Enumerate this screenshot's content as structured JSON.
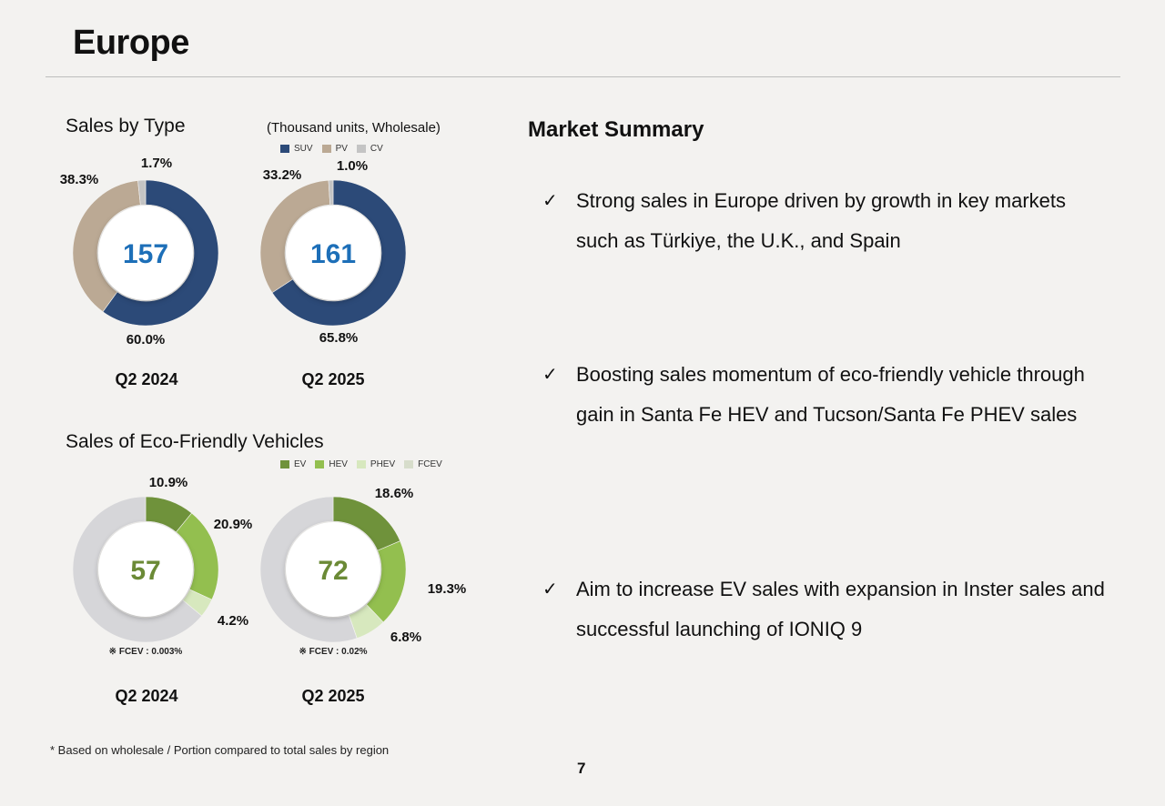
{
  "header": {
    "title": "Europe"
  },
  "sales_by_type": {
    "title": "Sales by Type",
    "unit_note": "(Thousand units, Wholesale)",
    "legend": [
      {
        "label": "SUV",
        "color": "#2c4a78"
      },
      {
        "label": "PV",
        "color": "#bba994"
      },
      {
        "label": "CV",
        "color": "#c4c4c4"
      }
    ]
  },
  "eco_sales": {
    "title": "Sales of Eco-Friendly Vehicles",
    "legend": [
      {
        "label": "EV",
        "color": "#6f923b"
      },
      {
        "label": "HEV",
        "color": "#93bf4f"
      },
      {
        "label": "PHEV",
        "color": "#d7e8be"
      },
      {
        "label": "FCEV",
        "color": "#d7ddcb"
      }
    ]
  },
  "chart_data": [
    {
      "type": "pie",
      "variant": "donut",
      "period": "Q2 2024",
      "total": 157,
      "total_color": "#1d6fb8",
      "slices": [
        {
          "name": "SUV",
          "value": 60.0,
          "label": "60.0%",
          "color": "#2c4a78"
        },
        {
          "name": "PV",
          "value": 38.3,
          "label": "38.3%",
          "color": "#bba994"
        },
        {
          "name": "CV",
          "value": 1.7,
          "label": "1.7%",
          "color": "#c4c4c4"
        }
      ]
    },
    {
      "type": "pie",
      "variant": "donut",
      "period": "Q2 2025",
      "total": 161,
      "total_color": "#1d6fb8",
      "slices": [
        {
          "name": "SUV",
          "value": 65.8,
          "label": "65.8%",
          "color": "#2c4a78"
        },
        {
          "name": "PV",
          "value": 33.2,
          "label": "33.2%",
          "color": "#bba994"
        },
        {
          "name": "CV",
          "value": 1.0,
          "label": "1.0%",
          "color": "#c4c4c4"
        }
      ]
    },
    {
      "type": "pie",
      "variant": "donut",
      "period": "Q2 2024",
      "total": 57,
      "total_color": "#6b8a36",
      "note": "※ FCEV : 0.003%",
      "slices": [
        {
          "name": "EV",
          "value": 10.9,
          "label": "10.9%",
          "color": "#6f923b"
        },
        {
          "name": "HEV",
          "value": 20.9,
          "label": "20.9%",
          "color": "#93bf4f"
        },
        {
          "name": "PHEV",
          "value": 4.2,
          "label": "4.2%",
          "color": "#d7e8be"
        },
        {
          "name": "FCEV",
          "value": 0.003,
          "label": "",
          "color": "#d7ddcb"
        },
        {
          "name": "Rest",
          "value": 64.0,
          "label": "",
          "color": "#d6d6d9"
        }
      ]
    },
    {
      "type": "pie",
      "variant": "donut",
      "period": "Q2 2025",
      "total": 72,
      "total_color": "#6b8a36",
      "note": "※ FCEV : 0.02%",
      "slices": [
        {
          "name": "EV",
          "value": 18.6,
          "label": "18.6%",
          "color": "#6f923b"
        },
        {
          "name": "HEV",
          "value": 19.3,
          "label": "19.3%",
          "color": "#93bf4f"
        },
        {
          "name": "PHEV",
          "value": 6.8,
          "label": "6.8%",
          "color": "#d7e8be"
        },
        {
          "name": "FCEV",
          "value": 0.02,
          "label": "",
          "color": "#d7ddcb"
        },
        {
          "name": "Rest",
          "value": 55.3,
          "label": "",
          "color": "#d6d6d9"
        }
      ]
    }
  ],
  "market_summary": {
    "title": "Market Summary",
    "check_symbol": "✓",
    "bullets": [
      "Strong sales in Europe driven by growth in key markets such as Türkiye, the U.K., and Spain",
      "Boosting sales momentum of eco-friendly vehicle through gain in Santa Fe HEV and Tucson/Santa Fe PHEV sales",
      "Aim to increase EV sales with expansion in Inster sales and successful launching of IONIQ 9"
    ]
  },
  "footnote": "* Based on wholesale / Portion compared to total sales by region",
  "page_number": "7"
}
